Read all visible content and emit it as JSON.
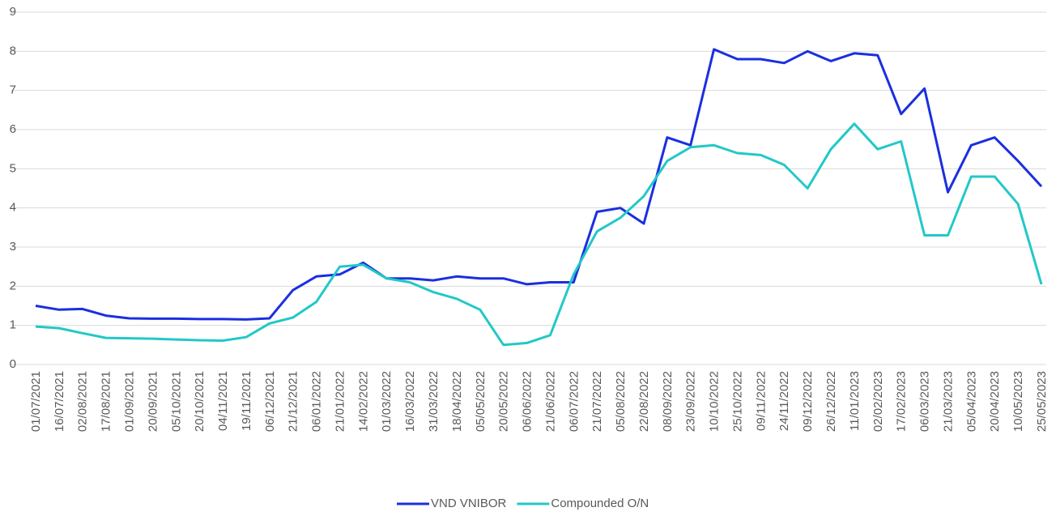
{
  "chart_data": {
    "type": "line",
    "categories": [
      "01/07/2021",
      "16/07/2021",
      "02/08/2021",
      "17/08/2021",
      "01/09/2021",
      "20/09/2021",
      "05/10/2021",
      "20/10/2021",
      "04/11/2021",
      "19/11/2021",
      "06/12/2021",
      "21/12/2021",
      "06/01/2022",
      "21/01/2022",
      "14/02/2022",
      "01/03/2022",
      "16/03/2022",
      "31/03/2022",
      "18/04/2022",
      "05/05/2022",
      "20/05/2022",
      "06/06/2022",
      "21/06/2022",
      "06/07/2022",
      "21/07/2022",
      "05/08/2022",
      "22/08/2022",
      "08/09/2022",
      "23/09/2022",
      "10/10/2022",
      "25/10/2022",
      "09/11/2022",
      "24/11/2022",
      "09/12/2022",
      "26/12/2022",
      "11/01/2023",
      "02/02/2023",
      "17/02/2023",
      "06/03/2023",
      "21/03/2023",
      "05/04/2023",
      "20/04/2023",
      "10/05/2023",
      "25/05/2023"
    ],
    "series": [
      {
        "name": "VND VNIBOR",
        "color": "#1a2fe0",
        "values": [
          1.5,
          1.4,
          1.42,
          1.25,
          1.18,
          1.17,
          1.17,
          1.16,
          1.16,
          1.15,
          1.18,
          1.9,
          2.25,
          2.3,
          2.6,
          2.2,
          2.2,
          2.15,
          2.25,
          2.2,
          2.2,
          2.05,
          2.1,
          2.1,
          3.9,
          4.0,
          3.6,
          5.8,
          5.6,
          8.05,
          7.8,
          7.8,
          7.7,
          8.0,
          7.75,
          7.95,
          7.9,
          6.4,
          7.05,
          4.4,
          5.6,
          5.8,
          5.2,
          4.55
        ]
      },
      {
        "name": "Compounded O/N",
        "color": "#22c8c8",
        "values": [
          0.97,
          0.93,
          0.8,
          0.68,
          0.67,
          0.66,
          0.64,
          0.62,
          0.61,
          0.7,
          1.05,
          1.2,
          1.6,
          2.5,
          2.55,
          2.2,
          2.1,
          1.85,
          1.68,
          1.4,
          0.5,
          0.55,
          0.75,
          2.3,
          3.4,
          3.75,
          4.3,
          5.2,
          5.55,
          5.6,
          5.4,
          5.35,
          5.1,
          4.5,
          5.5,
          6.15,
          5.5,
          5.7,
          3.3,
          3.3,
          4.8,
          4.8,
          4.1,
          2.05
        ]
      }
    ],
    "ylim": [
      0,
      9
    ],
    "yticks": [
      0,
      1,
      2,
      3,
      4,
      5,
      6,
      7,
      8,
      9
    ],
    "grid": true,
    "legend": "bottom"
  }
}
